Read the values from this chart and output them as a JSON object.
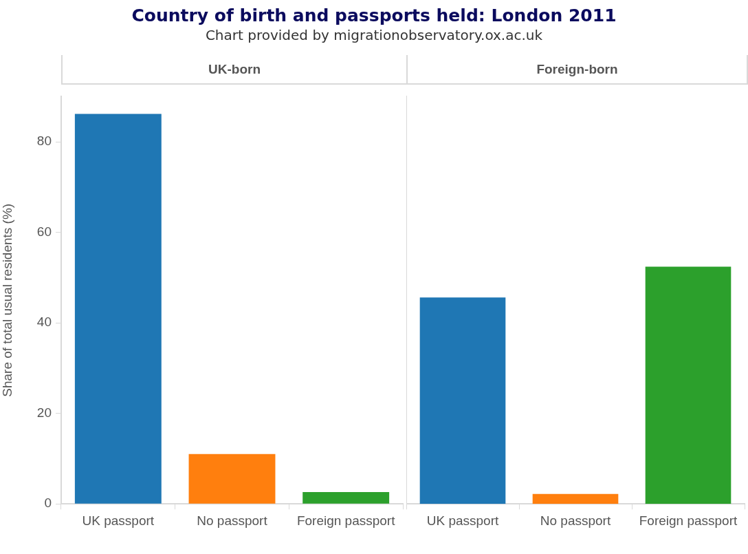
{
  "chart_data": [
    {
      "type": "bar",
      "title": "Country of birth and passports held: London 2011",
      "subtitle": "Chart provided by migrationobservatory.ox.ac.uk",
      "annotations": [
        "UK-born"
      ],
      "ylabel": "Share of total usual residents (%)",
      "categories": [
        "UK passport",
        "No passport",
        "Foreign passport"
      ],
      "values": [
        86.2,
        11.0,
        2.6
      ],
      "colors": [
        "#1f77b4",
        "#ff7f0e",
        "#2ca02c"
      ],
      "ylim": [
        0,
        90
      ],
      "yticks": [
        0,
        20,
        40,
        60,
        80
      ],
      "grid": false,
      "legend": false
    },
    {
      "type": "bar",
      "annotations": [
        "Foreign-born"
      ],
      "categories": [
        "UK passport",
        "No passport",
        "Foreign passport"
      ],
      "values": [
        45.6,
        2.2,
        52.4
      ],
      "colors": [
        "#1f77b4",
        "#ff7f0e",
        "#2ca02c"
      ],
      "ylim": [
        0,
        90
      ],
      "yticks": [
        0,
        20,
        40,
        60,
        80
      ],
      "grid": false,
      "legend": false,
      "tick_labels": "x"
    }
  ]
}
